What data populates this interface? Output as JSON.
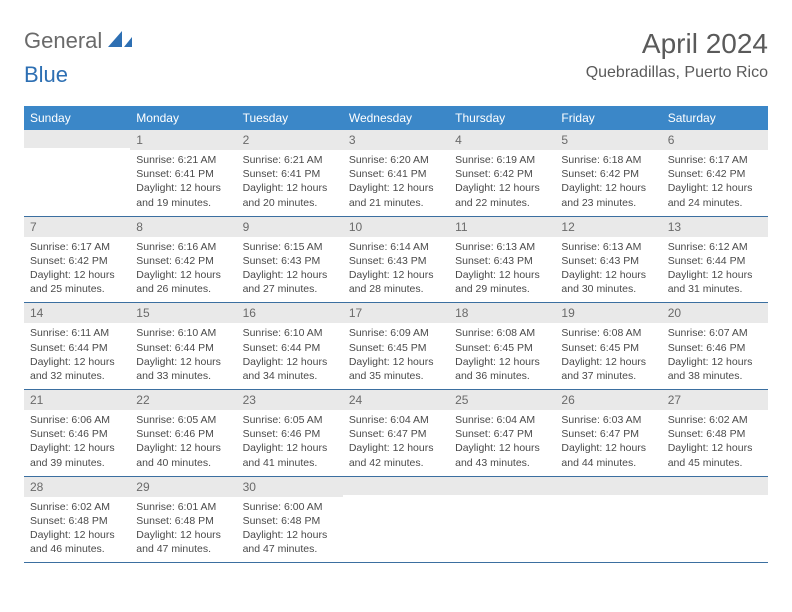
{
  "logo": {
    "text1": "General",
    "text2": "Blue"
  },
  "title": "April 2024",
  "location": "Quebradillas, Puerto Rico",
  "colors": {
    "header_bg": "#3b87c8",
    "header_fg": "#ffffff",
    "daynum_bg": "#e9e9e9",
    "daynum_fg": "#6a6a6a",
    "rule": "#3b6fa0",
    "logo_gray": "#6a6a6a",
    "logo_blue": "#2d6fb3"
  },
  "fonts": {
    "title_pt": 28,
    "location_pt": 16,
    "weekday_pt": 12,
    "daynum_pt": 12,
    "body_pt": 10.5
  },
  "weekdays": [
    "Sunday",
    "Monday",
    "Tuesday",
    "Wednesday",
    "Thursday",
    "Friday",
    "Saturday"
  ],
  "weeks": [
    [
      {
        "day": "",
        "lines": []
      },
      {
        "day": "1",
        "lines": [
          "Sunrise: 6:21 AM",
          "Sunset: 6:41 PM",
          "Daylight: 12 hours and 19 minutes."
        ]
      },
      {
        "day": "2",
        "lines": [
          "Sunrise: 6:21 AM",
          "Sunset: 6:41 PM",
          "Daylight: 12 hours and 20 minutes."
        ]
      },
      {
        "day": "3",
        "lines": [
          "Sunrise: 6:20 AM",
          "Sunset: 6:41 PM",
          "Daylight: 12 hours and 21 minutes."
        ]
      },
      {
        "day": "4",
        "lines": [
          "Sunrise: 6:19 AM",
          "Sunset: 6:42 PM",
          "Daylight: 12 hours and 22 minutes."
        ]
      },
      {
        "day": "5",
        "lines": [
          "Sunrise: 6:18 AM",
          "Sunset: 6:42 PM",
          "Daylight: 12 hours and 23 minutes."
        ]
      },
      {
        "day": "6",
        "lines": [
          "Sunrise: 6:17 AM",
          "Sunset: 6:42 PM",
          "Daylight: 12 hours and 24 minutes."
        ]
      }
    ],
    [
      {
        "day": "7",
        "lines": [
          "Sunrise: 6:17 AM",
          "Sunset: 6:42 PM",
          "Daylight: 12 hours and 25 minutes."
        ]
      },
      {
        "day": "8",
        "lines": [
          "Sunrise: 6:16 AM",
          "Sunset: 6:42 PM",
          "Daylight: 12 hours and 26 minutes."
        ]
      },
      {
        "day": "9",
        "lines": [
          "Sunrise: 6:15 AM",
          "Sunset: 6:43 PM",
          "Daylight: 12 hours and 27 minutes."
        ]
      },
      {
        "day": "10",
        "lines": [
          "Sunrise: 6:14 AM",
          "Sunset: 6:43 PM",
          "Daylight: 12 hours and 28 minutes."
        ]
      },
      {
        "day": "11",
        "lines": [
          "Sunrise: 6:13 AM",
          "Sunset: 6:43 PM",
          "Daylight: 12 hours and 29 minutes."
        ]
      },
      {
        "day": "12",
        "lines": [
          "Sunrise: 6:13 AM",
          "Sunset: 6:43 PM",
          "Daylight: 12 hours and 30 minutes."
        ]
      },
      {
        "day": "13",
        "lines": [
          "Sunrise: 6:12 AM",
          "Sunset: 6:44 PM",
          "Daylight: 12 hours and 31 minutes."
        ]
      }
    ],
    [
      {
        "day": "14",
        "lines": [
          "Sunrise: 6:11 AM",
          "Sunset: 6:44 PM",
          "Daylight: 12 hours and 32 minutes."
        ]
      },
      {
        "day": "15",
        "lines": [
          "Sunrise: 6:10 AM",
          "Sunset: 6:44 PM",
          "Daylight: 12 hours and 33 minutes."
        ]
      },
      {
        "day": "16",
        "lines": [
          "Sunrise: 6:10 AM",
          "Sunset: 6:44 PM",
          "Daylight: 12 hours and 34 minutes."
        ]
      },
      {
        "day": "17",
        "lines": [
          "Sunrise: 6:09 AM",
          "Sunset: 6:45 PM",
          "Daylight: 12 hours and 35 minutes."
        ]
      },
      {
        "day": "18",
        "lines": [
          "Sunrise: 6:08 AM",
          "Sunset: 6:45 PM",
          "Daylight: 12 hours and 36 minutes."
        ]
      },
      {
        "day": "19",
        "lines": [
          "Sunrise: 6:08 AM",
          "Sunset: 6:45 PM",
          "Daylight: 12 hours and 37 minutes."
        ]
      },
      {
        "day": "20",
        "lines": [
          "Sunrise: 6:07 AM",
          "Sunset: 6:46 PM",
          "Daylight: 12 hours and 38 minutes."
        ]
      }
    ],
    [
      {
        "day": "21",
        "lines": [
          "Sunrise: 6:06 AM",
          "Sunset: 6:46 PM",
          "Daylight: 12 hours and 39 minutes."
        ]
      },
      {
        "day": "22",
        "lines": [
          "Sunrise: 6:05 AM",
          "Sunset: 6:46 PM",
          "Daylight: 12 hours and 40 minutes."
        ]
      },
      {
        "day": "23",
        "lines": [
          "Sunrise: 6:05 AM",
          "Sunset: 6:46 PM",
          "Daylight: 12 hours and 41 minutes."
        ]
      },
      {
        "day": "24",
        "lines": [
          "Sunrise: 6:04 AM",
          "Sunset: 6:47 PM",
          "Daylight: 12 hours and 42 minutes."
        ]
      },
      {
        "day": "25",
        "lines": [
          "Sunrise: 6:04 AM",
          "Sunset: 6:47 PM",
          "Daylight: 12 hours and 43 minutes."
        ]
      },
      {
        "day": "26",
        "lines": [
          "Sunrise: 6:03 AM",
          "Sunset: 6:47 PM",
          "Daylight: 12 hours and 44 minutes."
        ]
      },
      {
        "day": "27",
        "lines": [
          "Sunrise: 6:02 AM",
          "Sunset: 6:48 PM",
          "Daylight: 12 hours and 45 minutes."
        ]
      }
    ],
    [
      {
        "day": "28",
        "lines": [
          "Sunrise: 6:02 AM",
          "Sunset: 6:48 PM",
          "Daylight: 12 hours and 46 minutes."
        ]
      },
      {
        "day": "29",
        "lines": [
          "Sunrise: 6:01 AM",
          "Sunset: 6:48 PM",
          "Daylight: 12 hours and 47 minutes."
        ]
      },
      {
        "day": "30",
        "lines": [
          "Sunrise: 6:00 AM",
          "Sunset: 6:48 PM",
          "Daylight: 12 hours and 47 minutes."
        ]
      },
      {
        "day": "",
        "lines": []
      },
      {
        "day": "",
        "lines": []
      },
      {
        "day": "",
        "lines": []
      },
      {
        "day": "",
        "lines": []
      }
    ]
  ]
}
